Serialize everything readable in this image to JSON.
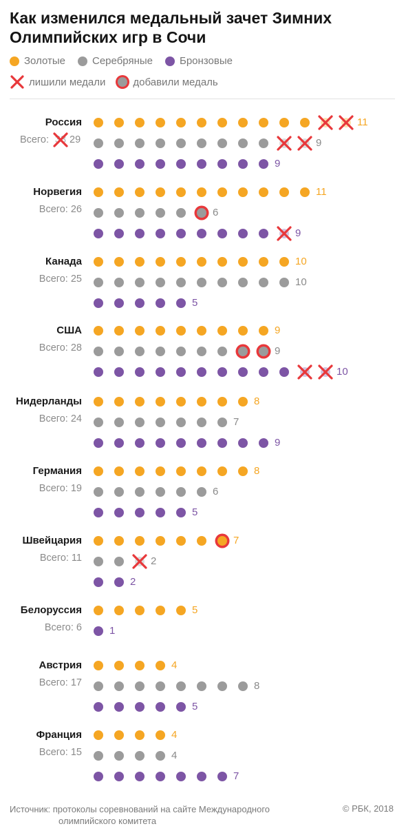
{
  "title": "Как изменился медальный зачет Зимних Олимпийских игр в Сочи",
  "legend": {
    "gold": "Золотые",
    "silver": "Серебряные",
    "bronze": "Бронзовые",
    "stripped": "лишили медали",
    "added": "добавили медаль"
  },
  "colors": {
    "gold": "#f5a623",
    "silver": "#9b9b9b",
    "bronze": "#7d55a5",
    "cross": "#e8383b",
    "ring": "#e8383b",
    "gold_text": "#f5a623",
    "silver_text": "#8a8a8a",
    "bronze_text": "#7d55a5"
  },
  "total_label": "Всего:",
  "chart_data": {
    "type": "dot-matrix",
    "medal_types": [
      "gold",
      "silver",
      "bronze"
    ],
    "countries": [
      {
        "name": "Россия",
        "total_old": 33,
        "total": 29,
        "gold": {
          "count": 11,
          "stripped": 2,
          "added": 0
        },
        "silver": {
          "count": 9,
          "stripped": 2,
          "added": 0
        },
        "bronze": {
          "count": 9,
          "stripped": 0,
          "added": 0
        }
      },
      {
        "name": "Норвегия",
        "total": 26,
        "gold": {
          "count": 11,
          "stripped": 0,
          "added": 0
        },
        "silver": {
          "count": 6,
          "stripped": 0,
          "added": 1
        },
        "bronze": {
          "count": 9,
          "stripped": 1,
          "added": 0
        }
      },
      {
        "name": "Канада",
        "total": 25,
        "gold": {
          "count": 10,
          "stripped": 0,
          "added": 0
        },
        "silver": {
          "count": 10,
          "stripped": 0,
          "added": 0
        },
        "bronze": {
          "count": 5,
          "stripped": 0,
          "added": 0
        }
      },
      {
        "name": "США",
        "total": 28,
        "gold": {
          "count": 9,
          "stripped": 0,
          "added": 0
        },
        "silver": {
          "count": 9,
          "stripped": 0,
          "added": 2
        },
        "bronze": {
          "count": 10,
          "stripped": 2,
          "added": 0
        }
      },
      {
        "name": "Нидерланды",
        "total": 24,
        "gold": {
          "count": 8,
          "stripped": 0,
          "added": 0
        },
        "silver": {
          "count": 7,
          "stripped": 0,
          "added": 0
        },
        "bronze": {
          "count": 9,
          "stripped": 0,
          "added": 0
        }
      },
      {
        "name": "Германия",
        "total": 19,
        "gold": {
          "count": 8,
          "stripped": 0,
          "added": 0
        },
        "silver": {
          "count": 6,
          "stripped": 0,
          "added": 0
        },
        "bronze": {
          "count": 5,
          "stripped": 0,
          "added": 0
        }
      },
      {
        "name": "Швейцария",
        "total": 11,
        "gold": {
          "count": 7,
          "stripped": 0,
          "added": 1
        },
        "silver": {
          "count": 2,
          "stripped": 1,
          "added": 0
        },
        "bronze": {
          "count": 2,
          "stripped": 0,
          "added": 0
        }
      },
      {
        "name": "Белоруссия",
        "total": 6,
        "gold": {
          "count": 5,
          "stripped": 0,
          "added": 0
        },
        "silver": {
          "count": 0,
          "stripped": 0,
          "added": 0
        },
        "bronze": {
          "count": 1,
          "stripped": 0,
          "added": 0
        }
      },
      {
        "name": "Австрия",
        "total": 17,
        "gold": {
          "count": 4,
          "stripped": 0,
          "added": 0
        },
        "silver": {
          "count": 8,
          "stripped": 0,
          "added": 0
        },
        "bronze": {
          "count": 5,
          "stripped": 0,
          "added": 0
        }
      },
      {
        "name": "Франция",
        "total": 15,
        "gold": {
          "count": 4,
          "stripped": 0,
          "added": 0
        },
        "silver": {
          "count": 4,
          "stripped": 0,
          "added": 0
        },
        "bronze": {
          "count": 7,
          "stripped": 0,
          "added": 0
        }
      }
    ]
  },
  "footer": {
    "source_line1": "Источник: протоколы соревнований на сайте Международного",
    "source_line2": "олимпийского комитета",
    "copyright": "© РБК, 2018"
  }
}
